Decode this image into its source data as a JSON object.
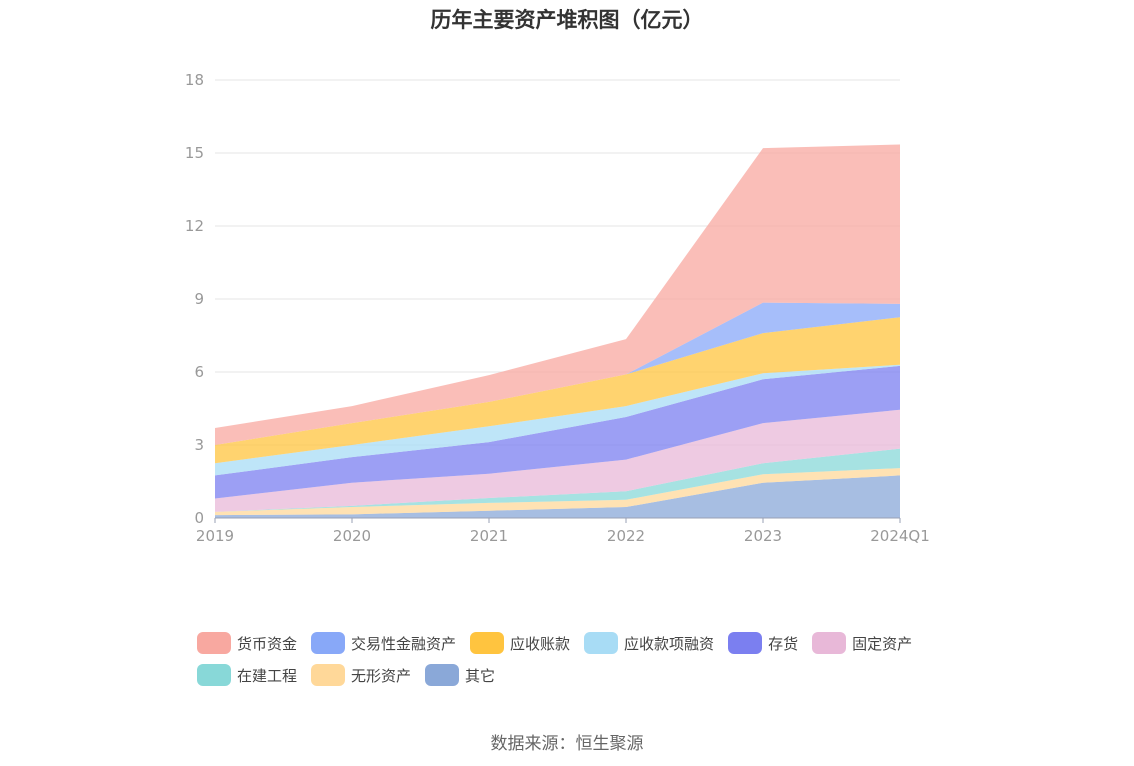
{
  "title": "历年主要资产堆积图（亿元）",
  "source": "数据来源：恒生聚源",
  "chart_data": {
    "type": "area",
    "stacked": true,
    "x": [
      "2019",
      "2020",
      "2021",
      "2022",
      "2023",
      "2024Q1"
    ],
    "ylim": [
      0,
      18
    ],
    "yticks": [
      0,
      3,
      6,
      9,
      12,
      15,
      18
    ],
    "grid": true,
    "legend_position": "bottom",
    "series": [
      {
        "name": "其它",
        "color": "#8aa8d8",
        "values": [
          0.12,
          0.15,
          0.3,
          0.45,
          1.45,
          1.75
        ]
      },
      {
        "name": "无形资产",
        "color": "#ffd899",
        "values": [
          0.13,
          0.3,
          0.32,
          0.3,
          0.35,
          0.3
        ]
      },
      {
        "name": "在建工程",
        "color": "#88d8d8",
        "values": [
          0.0,
          0.05,
          0.2,
          0.35,
          0.45,
          0.8
        ]
      },
      {
        "name": "固定资产",
        "color": "#e8b8d8",
        "values": [
          0.55,
          0.95,
          1.0,
          1.3,
          1.65,
          1.6
        ]
      },
      {
        "name": "存货",
        "color": "#7b7ff0",
        "values": [
          0.95,
          1.05,
          1.3,
          1.75,
          1.8,
          1.8
        ]
      },
      {
        "name": "应收款项融资",
        "color": "#a8dcf5",
        "values": [
          0.5,
          0.5,
          0.65,
          0.45,
          0.25,
          0.05
        ]
      },
      {
        "name": "应收账款",
        "color": "#ffc43f",
        "values": [
          0.75,
          0.9,
          1.0,
          1.3,
          1.65,
          1.95
        ]
      },
      {
        "name": "交易性金融资产",
        "color": "#88a8f8",
        "values": [
          0.0,
          0.0,
          0.0,
          0.0,
          1.25,
          0.55
        ]
      },
      {
        "name": "货币资金",
        "color": "#f8a8a0",
        "values": [
          0.7,
          0.7,
          1.1,
          1.45,
          6.35,
          6.55
        ]
      }
    ]
  }
}
